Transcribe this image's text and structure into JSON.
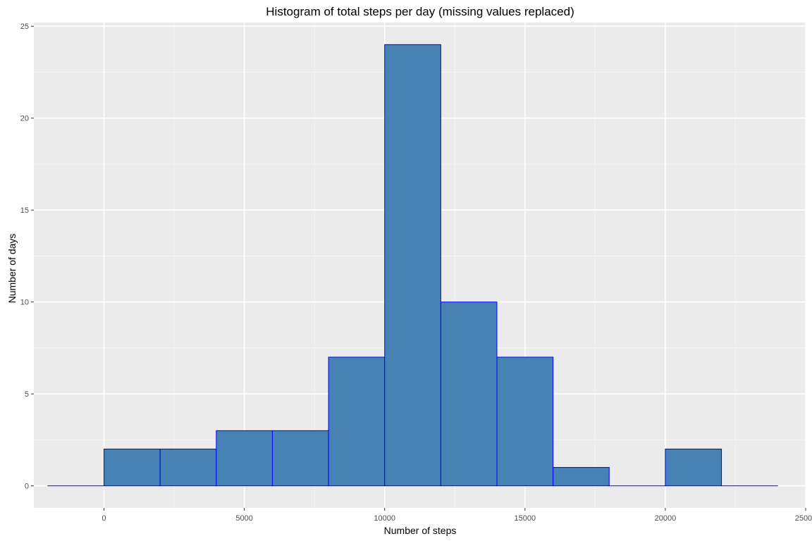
{
  "chart_data": {
    "type": "bar",
    "title": "Histogram of total steps per day (missing values replaced)",
    "xlabel": "Number of steps",
    "ylabel": "Number of days",
    "xlim": [
      -2500,
      25000
    ],
    "ylim": [
      -1.2,
      25.2
    ],
    "x_ticks": [
      0,
      5000,
      10000,
      15000,
      20000,
      25000
    ],
    "y_ticks": [
      0,
      5,
      10,
      15,
      20,
      25
    ],
    "x_tick_labels": [
      "0",
      "5000",
      "10000",
      "15000",
      "20000",
      "25000"
    ],
    "y_tick_labels": [
      "0",
      "5",
      "10",
      "15",
      "20",
      "25"
    ],
    "bin_width": 2000,
    "bins": [
      {
        "x0": -2000,
        "x1": 0,
        "count": 0
      },
      {
        "x0": 0,
        "x1": 2000,
        "count": 2
      },
      {
        "x0": 2000,
        "x1": 4000,
        "count": 2
      },
      {
        "x0": 4000,
        "x1": 6000,
        "count": 3
      },
      {
        "x0": 6000,
        "x1": 8000,
        "count": 3
      },
      {
        "x0": 8000,
        "x1": 10000,
        "count": 7
      },
      {
        "x0": 10000,
        "x1": 12000,
        "count": 24
      },
      {
        "x0": 12000,
        "x1": 14000,
        "count": 10
      },
      {
        "x0": 14000,
        "x1": 16000,
        "count": 7
      },
      {
        "x0": 16000,
        "x1": 18000,
        "count": 1
      },
      {
        "x0": 18000,
        "x1": 20000,
        "count": 0
      },
      {
        "x0": 20000,
        "x1": 22000,
        "count": 2
      },
      {
        "x0": 22000,
        "x1": 24000,
        "count": 0
      }
    ],
    "grid": true,
    "legend": "none",
    "colors": {
      "bar_fill": "#4682b4",
      "bar_outline": "#0000ff",
      "panel_background": "#ebebeb",
      "grid_major": "#ffffff",
      "grid_minor": "#f5f5f5"
    }
  }
}
